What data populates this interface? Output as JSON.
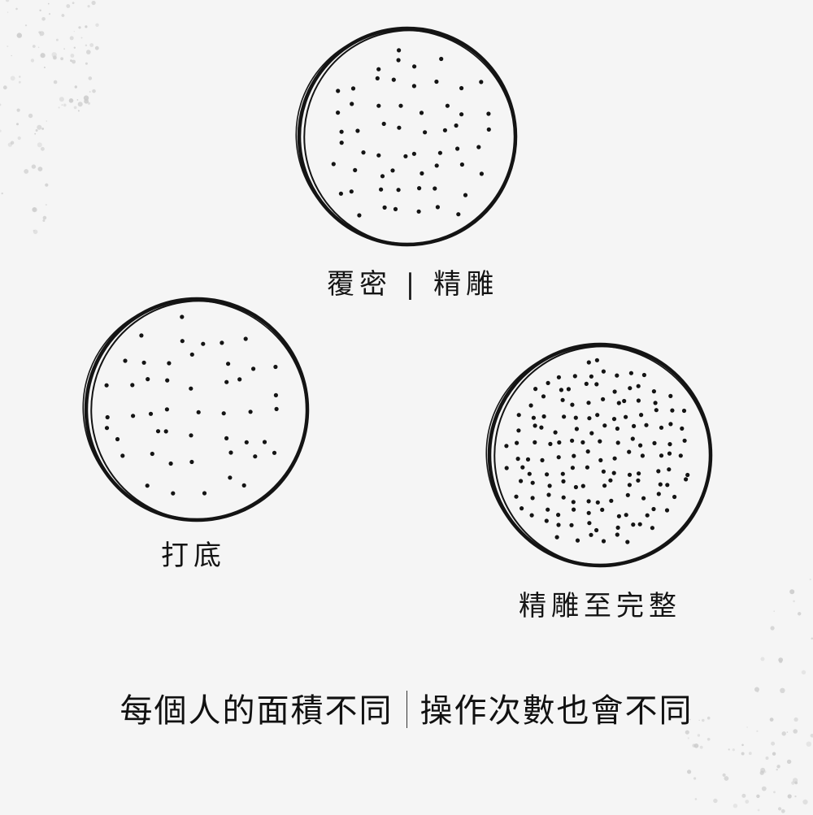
{
  "labels": {
    "top": "覆密 | 精雕",
    "left": "打底",
    "right": "精雕至完整"
  },
  "caption": {
    "left": "每個人的面積不同",
    "right": "操作次數也會不同"
  },
  "colors": {
    "background": "#f5f5f5",
    "ink": "#141414",
    "speckle": "#c9c9c9"
  }
}
